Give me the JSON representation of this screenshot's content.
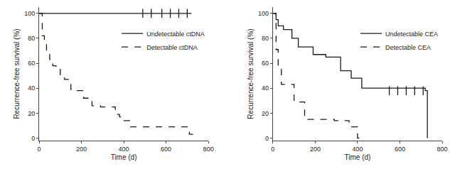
{
  "chart_data": [
    {
      "type": "line",
      "xlabel": "Time (d)",
      "ylabel": "Recurrence-free survival (%)",
      "xlim": [
        0,
        800
      ],
      "ylim": [
        -2,
        105
      ],
      "xticks": [
        0,
        200,
        400,
        600,
        800
      ],
      "yticks": [
        0,
        20,
        40,
        60,
        80,
        100
      ],
      "grid": false,
      "legend": "upper right",
      "series": [
        {
          "name": "Undetectable ctDNA",
          "color": "#1a1a1a",
          "line_style": "solid",
          "x": [
            0,
            720
          ],
          "values": [
            100,
            100
          ],
          "censor_x": [
            490,
            530,
            580,
            620,
            660,
            700
          ],
          "censor_y": [
            100,
            100,
            100,
            100,
            100,
            100
          ]
        },
        {
          "name": "Detectable ctDNA",
          "color": "#1a1a1a",
          "line_style": "dashed",
          "x": [
            0,
            15,
            25,
            35,
            50,
            65,
            80,
            100,
            120,
            150,
            180,
            210,
            250,
            290,
            330,
            360,
            380,
            400,
            430,
            500,
            600,
            640,
            680,
            710,
            730
          ],
          "values": [
            100,
            82,
            77,
            70,
            63,
            58,
            56,
            50,
            47,
            39,
            38,
            32,
            26,
            25,
            25,
            19,
            17,
            14,
            9,
            9,
            9,
            9,
            9,
            3,
            0
          ]
        }
      ]
    },
    {
      "type": "line",
      "xlabel": "Time (d)",
      "ylabel": "Recurrence-free survival (%)",
      "xlim": [
        0,
        800
      ],
      "ylim": [
        -2,
        105
      ],
      "xticks": [
        0,
        200,
        400,
        600,
        800
      ],
      "yticks": [
        0,
        20,
        40,
        60,
        80,
        100
      ],
      "grid": false,
      "legend": "upper right",
      "series": [
        {
          "name": "Undetectable CEA",
          "color": "#1a1a1a",
          "line_style": "solid",
          "x": [
            0,
            15,
            25,
            50,
            90,
            120,
            190,
            250,
            320,
            370,
            420,
            720,
            730
          ],
          "values": [
            100,
            95,
            90,
            87,
            80,
            73,
            67,
            65,
            54,
            48,
            40,
            38,
            0
          ],
          "censor_x": [
            550,
            590,
            630,
            670,
            710
          ],
          "censor_y": [
            38,
            38,
            38,
            38,
            38
          ]
        },
        {
          "name": "Detectable CEA",
          "color": "#1a1a1a",
          "line_style": "dashed",
          "x": [
            0,
            15,
            25,
            40,
            80,
            100,
            150,
            190,
            290,
            360,
            400,
            420
          ],
          "values": [
            100,
            71,
            58,
            43,
            43,
            29,
            15,
            15,
            14,
            9,
            0,
            0
          ]
        }
      ]
    }
  ]
}
